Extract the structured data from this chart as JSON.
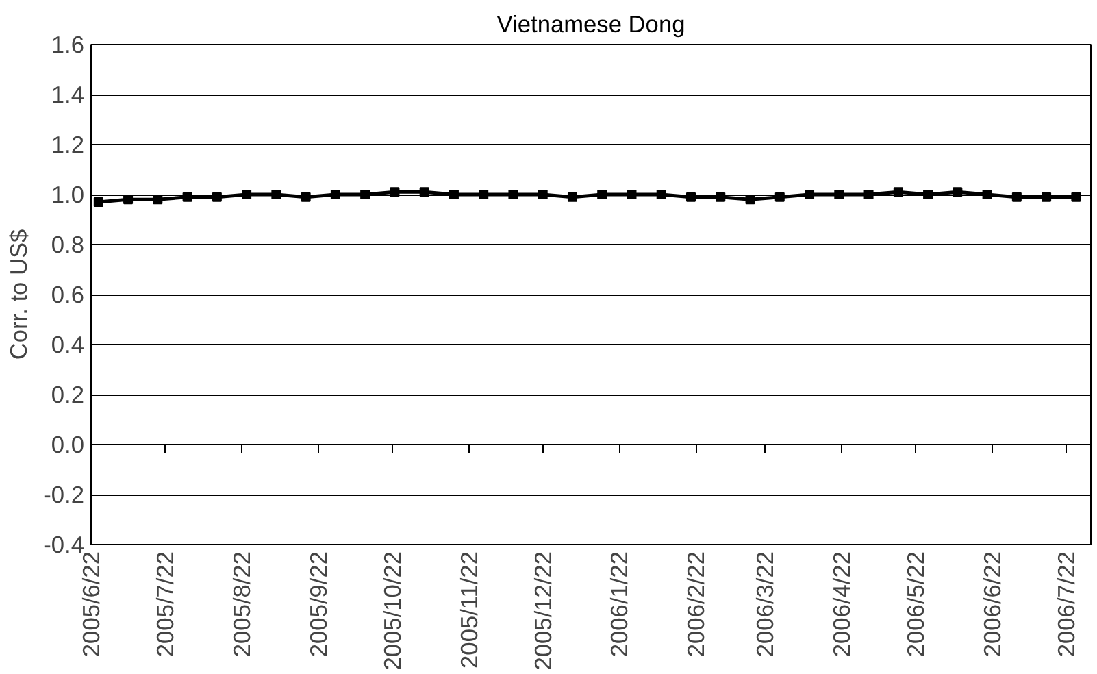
{
  "chart_data": {
    "type": "line",
    "title": "Vietnamese Dong",
    "ylabel": "Corr. to US$",
    "x": [
      "2005-06-25",
      "2005-07-07",
      "2005-07-19",
      "2005-07-31",
      "2005-08-12",
      "2005-08-24",
      "2005-09-05",
      "2005-09-17",
      "2005-09-29",
      "2005-10-11",
      "2005-10-23",
      "2005-11-04",
      "2005-11-16",
      "2005-11-28",
      "2005-12-10",
      "2005-12-22",
      "2006-01-03",
      "2006-01-15",
      "2006-01-27",
      "2006-02-08",
      "2006-02-20",
      "2006-03-04",
      "2006-03-16",
      "2006-03-28",
      "2006-04-09",
      "2006-04-21",
      "2006-05-03",
      "2006-05-15",
      "2006-05-27",
      "2006-06-08",
      "2006-06-20",
      "2006-07-02",
      "2006-07-14",
      "2006-07-26"
    ],
    "series": [
      {
        "color": "#000000",
        "values": [
          0.97,
          0.98,
          0.98,
          0.99,
          0.99,
          1.0,
          1.0,
          0.99,
          1.0,
          1.0,
          1.01,
          1.01,
          1.0,
          1.0,
          1.0,
          1.0,
          0.99,
          1.0,
          1.0,
          1.0,
          0.99,
          0.99,
          0.98,
          0.99,
          1.0,
          1.0,
          1.0,
          1.01,
          1.0,
          1.01,
          1.0,
          0.99,
          0.99,
          0.99
        ]
      }
    ],
    "xlim": [
      "2005-06-22",
      "2006-08-01"
    ],
    "xticks": [
      {
        "value": "2005-06-22",
        "label": "2005/6/22"
      },
      {
        "value": "2005-07-22",
        "label": "2005/7/22"
      },
      {
        "value": "2005-08-22",
        "label": "2005/8/22"
      },
      {
        "value": "2005-09-22",
        "label": "2005/9/22"
      },
      {
        "value": "2005-10-22",
        "label": "2005/10/22"
      },
      {
        "value": "2005-11-22",
        "label": "2005/11/22"
      },
      {
        "value": "2005-12-22",
        "label": "2005/12/22"
      },
      {
        "value": "2006-01-22",
        "label": "2006/1/22"
      },
      {
        "value": "2006-02-22",
        "label": "2006/2/22"
      },
      {
        "value": "2006-03-22",
        "label": "2006/3/22"
      },
      {
        "value": "2006-04-22",
        "label": "2006/4/22"
      },
      {
        "value": "2006-05-22",
        "label": "2006/5/22"
      },
      {
        "value": "2006-06-22",
        "label": "2006/6/22"
      },
      {
        "value": "2006-07-22",
        "label": "2006/7/22"
      }
    ],
    "ylim": [
      -0.4,
      1.6
    ],
    "yticks": [
      {
        "value": -0.4,
        "label": "-0.4"
      },
      {
        "value": -0.2,
        "label": "-0.2"
      },
      {
        "value": 0,
        "label": "0.0"
      },
      {
        "value": 0.2,
        "label": "0.2"
      },
      {
        "value": 0.4,
        "label": "0.4"
      },
      {
        "value": 0.6,
        "label": "0.6"
      },
      {
        "value": 0.8,
        "label": "0.8"
      },
      {
        "value": 1,
        "label": "1.0"
      },
      {
        "value": 1.2,
        "label": "1.2"
      },
      {
        "value": 1.4,
        "label": "1.4"
      },
      {
        "value": 1.6,
        "label": "1.6"
      }
    ],
    "grid": "y",
    "marker": "square",
    "line_style": "solid"
  }
}
